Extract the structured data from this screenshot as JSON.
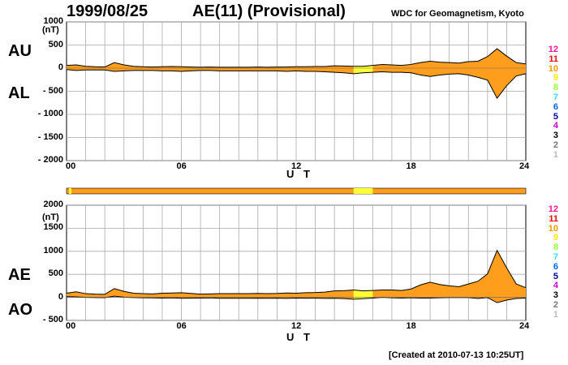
{
  "header": {
    "date": "1999/08/25",
    "title": "AE(11) (Provisional)",
    "credit": "WDC for Geomagnetism, Kyoto",
    "created": "[Created at 2010-07-13 10:25UT]"
  },
  "colors": {
    "fill_normal": "#ff9d1c",
    "fill_highlight": "#ffff33",
    "outline": "#000000",
    "grid": "#aaaaaa"
  },
  "legend": [
    {
      "label": "12",
      "color": "#ff1493"
    },
    {
      "label": "11",
      "color": "#ff0000"
    },
    {
      "label": "10",
      "color": "#ff9900"
    },
    {
      "label": "9",
      "color": "#ffee00"
    },
    {
      "label": "8",
      "color": "#99ff33"
    },
    {
      "label": "7",
      "color": "#33ddff"
    },
    {
      "label": "6",
      "color": "#0066ff"
    },
    {
      "label": "5",
      "color": "#000099"
    },
    {
      "label": "4",
      "color": "#cc00cc"
    },
    {
      "label": "3",
      "color": "#000000"
    },
    {
      "label": "2",
      "color": "#777777"
    },
    {
      "label": "1",
      "color": "#bbbbbb"
    }
  ],
  "chart_data": [
    {
      "type": "area",
      "panel": "AU/AL",
      "side_labels": {
        "upper": "AU",
        "lower": "AL"
      },
      "ylabel": "(nT)",
      "xlabel": "U T",
      "xlim": [
        0,
        24
      ],
      "ylim": [
        -2000,
        1000
      ],
      "yticks": [
        "1000",
        "500",
        "0",
        "- 500",
        "- 1000",
        "- 1500",
        "- 2000"
      ],
      "xticks": [
        "00",
        "06",
        "12",
        "18",
        "24"
      ],
      "grid": true,
      "highlight_hours": [
        15,
        16
      ],
      "x": [
        0,
        0.5,
        1,
        1.5,
        2,
        2.5,
        3,
        3.5,
        4,
        4.5,
        5,
        5.5,
        6,
        6.5,
        7,
        7.5,
        8,
        8.5,
        9,
        9.5,
        10,
        10.5,
        11,
        11.5,
        12,
        12.5,
        13,
        13.5,
        14,
        14.5,
        15,
        15.5,
        16,
        16.5,
        17,
        17.5,
        18,
        18.5,
        19,
        19.5,
        20,
        20.5,
        21,
        21.5,
        22,
        22.5,
        23,
        23.5,
        24
      ],
      "series": [
        {
          "name": "AU",
          "values": [
            60,
            70,
            40,
            30,
            25,
            120,
            70,
            40,
            30,
            25,
            30,
            35,
            30,
            25,
            20,
            25,
            20,
            20,
            20,
            20,
            25,
            20,
            25,
            25,
            30,
            30,
            35,
            35,
            50,
            45,
            40,
            40,
            60,
            80,
            70,
            60,
            80,
            120,
            150,
            130,
            120,
            110,
            140,
            150,
            250,
            420,
            260,
            120,
            90
          ]
        },
        {
          "name": "AL",
          "values": [
            -30,
            -50,
            -40,
            -40,
            -40,
            -70,
            -60,
            -50,
            -50,
            -50,
            -60,
            -60,
            -70,
            -60,
            -50,
            -50,
            -60,
            -60,
            -60,
            -60,
            -60,
            -60,
            -60,
            -70,
            -60,
            -70,
            -70,
            -80,
            -90,
            -100,
            -120,
            -100,
            -90,
            -80,
            -90,
            -90,
            -100,
            -150,
            -180,
            -150,
            -130,
            -120,
            -150,
            -200,
            -260,
            -650,
            -380,
            -170,
            -120
          ]
        }
      ]
    },
    {
      "type": "area",
      "panel": "AE/AO",
      "side_labels": {
        "upper": "AE",
        "lower": "AO"
      },
      "ylabel": "(nT)",
      "xlabel": "U T",
      "xlim": [
        0,
        24
      ],
      "ylim": [
        -500,
        2000
      ],
      "yticks": [
        "2000",
        "1500",
        "1000",
        "500",
        "0",
        "- 500"
      ],
      "xticks": [
        "00",
        "06",
        "12",
        "18",
        "24"
      ],
      "grid": true,
      "highlight_hours": [
        15,
        16
      ],
      "x": [
        0,
        0.5,
        1,
        1.5,
        2,
        2.5,
        3,
        3.5,
        4,
        4.5,
        5,
        5.5,
        6,
        6.5,
        7,
        7.5,
        8,
        8.5,
        9,
        9.5,
        10,
        10.5,
        11,
        11.5,
        12,
        12.5,
        13,
        13.5,
        14,
        14.5,
        15,
        15.5,
        16,
        16.5,
        17,
        17.5,
        18,
        18.5,
        19,
        19.5,
        20,
        20.5,
        21,
        21.5,
        22,
        22.5,
        23,
        23.5,
        24
      ],
      "series": [
        {
          "name": "AE",
          "values": [
            90,
            120,
            80,
            70,
            65,
            190,
            130,
            90,
            80,
            75,
            90,
            95,
            100,
            85,
            70,
            75,
            80,
            80,
            80,
            80,
            85,
            80,
            85,
            95,
            90,
            100,
            105,
            115,
            140,
            145,
            160,
            140,
            150,
            160,
            160,
            150,
            180,
            270,
            330,
            280,
            250,
            230,
            290,
            350,
            510,
            1020,
            640,
            290,
            210
          ]
        },
        {
          "name": "AO",
          "values": [
            15,
            10,
            0,
            -5,
            -8,
            25,
            5,
            -5,
            -10,
            -12,
            -15,
            -12,
            -20,
            -17,
            -15,
            -12,
            -20,
            -20,
            -20,
            -20,
            -17,
            -20,
            -17,
            -22,
            -15,
            -20,
            -17,
            -22,
            -20,
            -27,
            -40,
            -30,
            -15,
            0,
            -10,
            -15,
            -10,
            -15,
            -15,
            -10,
            -5,
            -5,
            -5,
            -25,
            -5,
            -115,
            -60,
            -25,
            -15
          ]
        }
      ]
    }
  ]
}
